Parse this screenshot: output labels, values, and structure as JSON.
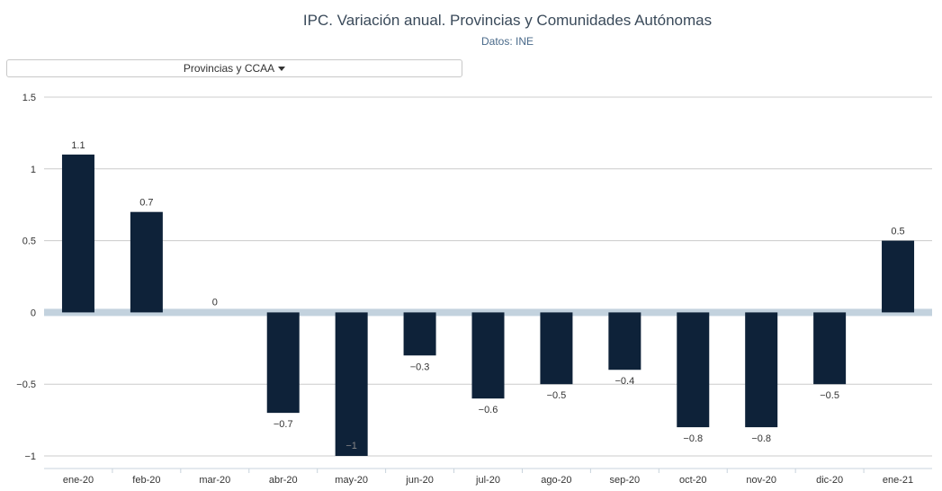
{
  "header": {
    "title": "IPC. Variación anual. Provincias y Comunidades Autónomas",
    "subtitle": "Datos: INE"
  },
  "dropdown": {
    "label": "Provincias y CCAA"
  },
  "colors": {
    "bar": "#0e2239",
    "zero_band": "#c3d2de",
    "grid": "#cccccc"
  },
  "chart_data": {
    "type": "bar",
    "title": "IPC. Variación anual. Provincias y Comunidades Autónomas",
    "subtitle": "Datos: INE",
    "categories": [
      "ene-20",
      "feb-20",
      "mar-20",
      "abr-20",
      "may-20",
      "jun-20",
      "jul-20",
      "ago-20",
      "sep-20",
      "oct-20",
      "nov-20",
      "dic-20",
      "ene-21"
    ],
    "values": [
      1.1,
      0.7,
      0,
      -0.7,
      -1,
      -0.3,
      -0.6,
      -0.5,
      -0.4,
      -0.8,
      -0.8,
      -0.5,
      0.5
    ],
    "value_labels": [
      "1.1",
      "0.7",
      "0",
      "−0.7",
      "−1",
      "−0.3",
      "−0.6",
      "−0.5",
      "−0.4",
      "−0.8",
      "−0.8",
      "−0.5",
      "0.5"
    ],
    "yticks": [
      1.5,
      1,
      0.5,
      0,
      -0.5,
      -1
    ],
    "ytick_labels": [
      "1.5",
      "1",
      "0.5",
      "0",
      "−0.5",
      "−1"
    ],
    "ylim": [
      -1,
      1.5
    ],
    "xlabel": "",
    "ylabel": "",
    "grid": true,
    "legend": false
  }
}
